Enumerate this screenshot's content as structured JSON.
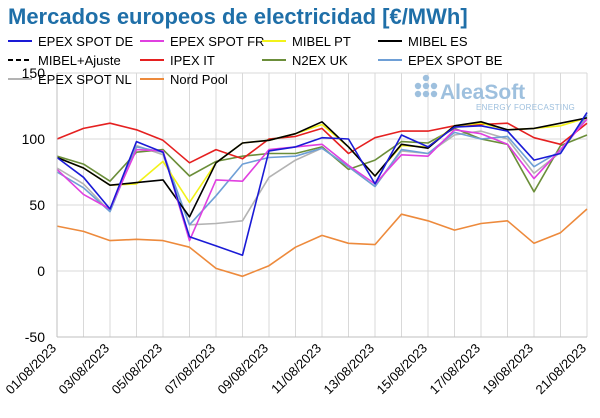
{
  "chart_data": {
    "type": "line",
    "title": "Mercados europeos de electricidad [€/MWh]",
    "xlabel": "",
    "ylabel": "",
    "ylim": [
      -50,
      150
    ],
    "yticks": [
      -50,
      0,
      50,
      100,
      150
    ],
    "grid": true,
    "legend_position": "top",
    "x": [
      "01/08/2023",
      "02/08/2023",
      "03/08/2023",
      "04/08/2023",
      "05/08/2023",
      "06/08/2023",
      "07/08/2023",
      "08/08/2023",
      "09/08/2023",
      "10/08/2023",
      "11/08/2023",
      "12/08/2023",
      "13/08/2023",
      "14/08/2023",
      "15/08/2023",
      "16/08/2023",
      "17/08/2023",
      "18/08/2023",
      "19/08/2023",
      "20/08/2023",
      "21/08/2023"
    ],
    "xtick_labels": [
      "01/08/2023",
      "03/08/2023",
      "05/08/2023",
      "07/08/2023",
      "09/08/2023",
      "11/08/2023",
      "13/08/2023",
      "15/08/2023",
      "17/08/2023",
      "19/08/2023",
      "21/08/2023"
    ],
    "series": [
      {
        "name": "EPEX SPOT DE",
        "color": "#1a1ad6",
        "dash": "solid",
        "values": [
          86,
          71,
          47,
          98,
          90,
          26,
          19,
          12,
          91,
          94,
          101,
          100,
          66,
          103,
          94,
          109,
          110,
          106,
          84,
          89,
          120
        ]
      },
      {
        "name": "EPEX SPOT FR",
        "color": "#e040e0",
        "dash": "solid",
        "values": [
          77,
          58,
          47,
          92,
          91,
          23,
          69,
          68,
          92,
          94,
          96,
          80,
          66,
          88,
          87,
          107,
          104,
          96,
          70,
          92,
          115
        ]
      },
      {
        "name": "MIBEL PT",
        "color": "#f2f21a",
        "dash": "solid",
        "values": [
          86,
          78,
          65,
          66,
          83,
          52,
          82,
          97,
          99,
          104,
          111,
          94,
          72,
          95,
          94,
          110,
          112,
          107,
          108,
          110,
          116
        ]
      },
      {
        "name": "MIBEL ES",
        "color": "#000000",
        "dash": "solid",
        "values": [
          86,
          78,
          65,
          67,
          69,
          41,
          82,
          97,
          99,
          104,
          113,
          94,
          72,
          96,
          93,
          110,
          113,
          107,
          108,
          112,
          116
        ]
      },
      {
        "name": "MIBEL+Ajuste",
        "color": "#000000",
        "dash": "dashed",
        "values": [
          null,
          null,
          null,
          null,
          null,
          null,
          null,
          null,
          null,
          null,
          null,
          null,
          null,
          null,
          null,
          null,
          null,
          null,
          null,
          null,
          null
        ]
      },
      {
        "name": "IPEX IT",
        "color": "#e52020",
        "dash": "solid",
        "values": [
          100,
          108,
          112,
          107,
          99,
          82,
          92,
          85,
          100,
          102,
          108,
          89,
          101,
          106,
          106,
          110,
          111,
          112,
          101,
          96,
          112
        ]
      },
      {
        "name": "N2EX UK",
        "color": "#6b8e3a",
        "dash": "solid",
        "values": [
          87,
          81,
          68,
          90,
          92,
          72,
          83,
          87,
          89,
          89,
          94,
          77,
          84,
          98,
          97,
          108,
          100,
          96,
          60,
          95,
          103
        ]
      },
      {
        "name": "EPEX SPOT BE",
        "color": "#6e9fd6",
        "dash": "solid",
        "values": [
          75,
          63,
          45,
          94,
          90,
          35,
          57,
          81,
          86,
          87,
          93,
          79,
          64,
          92,
          89,
          105,
          100,
          102,
          79,
          91,
          118
        ]
      },
      {
        "name": "EPEX SPOT NL",
        "color": "#b3b3b3",
        "dash": "solid",
        "values": [
          78,
          66,
          45,
          95,
          88,
          35,
          36,
          38,
          71,
          84,
          93,
          79,
          64,
          91,
          89,
          103,
          106,
          100,
          74,
          90,
          117
        ]
      },
      {
        "name": "Nord Pool",
        "color": "#ed8a3c",
        "dash": "solid",
        "values": [
          34,
          30,
          23,
          24,
          23,
          18,
          2,
          -4,
          4,
          18,
          27,
          21,
          20,
          43,
          38,
          31,
          36,
          38,
          21,
          29,
          47
        ]
      }
    ]
  },
  "logo": {
    "name": "AleaSoft",
    "tagline": "ENERGY FORECASTING"
  }
}
